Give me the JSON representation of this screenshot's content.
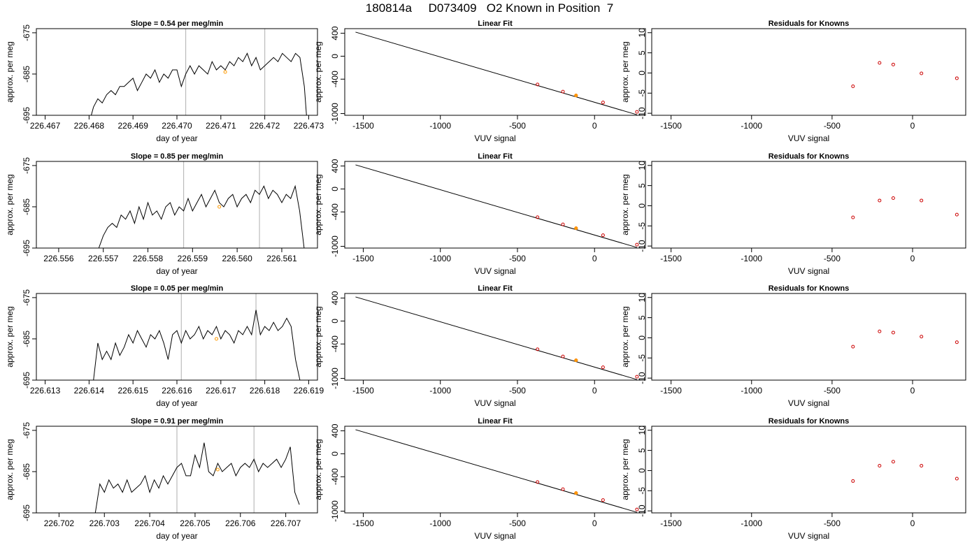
{
  "page_title": "180814a     D073409   O2 Known in Position  7",
  "colors": {
    "line": "#000000",
    "residual_points": "#cc0000",
    "highlight_point": "#ff9900",
    "marker_lines": "#bbbbbb",
    "fit_points": "#cc0000"
  },
  "chart_data": [
    {
      "type": "line",
      "panel": "row1-timeseries",
      "title": "Slope =  0.54  per meg/min",
      "xlabel": "day of year",
      "ylabel": "approx. per meg",
      "xticks": [
        226.467,
        226.468,
        226.469,
        226.47,
        226.471,
        226.472,
        226.473
      ],
      "xtick_labels": [
        "226.467",
        "226.468",
        "226.469",
        "226.470",
        "226.471",
        "226.472",
        "226.473"
      ],
      "yticks": [
        -675,
        -685,
        -695
      ],
      "ytick_labels": [
        "-675",
        "-685",
        "-695"
      ],
      "xlim": [
        226.4668,
        226.4732
      ],
      "ylim": [
        -695,
        -674
      ],
      "vlines": [
        226.4702,
        226.472
      ],
      "highlight": {
        "x": 226.4711,
        "y": -684.5
      },
      "series": [
        {
          "x": [
            226.46805,
            226.4681,
            226.4682,
            226.4683,
            226.4684,
            226.4685,
            226.4686,
            226.4687,
            226.4688,
            226.4689,
            226.469,
            226.4691,
            226.4692,
            226.4693,
            226.4694,
            226.4695,
            226.4696,
            226.4697,
            226.4698,
            226.4699,
            226.47,
            226.4701,
            226.4702,
            226.4703,
            226.4704,
            226.4705,
            226.4706,
            226.4707,
            226.4708,
            226.4709,
            226.471,
            226.4711,
            226.4712,
            226.4713,
            226.4714,
            226.4715,
            226.4716,
            226.4717,
            226.4718,
            226.4719,
            226.472,
            226.4721,
            226.4722,
            226.4723,
            226.4724,
            226.4725,
            226.4726,
            226.4727,
            226.4728,
            226.4729,
            226.47295
          ],
          "values": [
            -695,
            -693,
            -691,
            -692,
            -690,
            -689,
            -690,
            -688,
            -688,
            -687,
            -686,
            -689,
            -687,
            -685,
            -686,
            -684,
            -687,
            -685,
            -686,
            -684,
            -684,
            -688,
            -685,
            -683,
            -685,
            -683,
            -684,
            -685,
            -682,
            -684,
            -683,
            -684,
            -682,
            -683,
            -681,
            -682,
            -680,
            -683,
            -681,
            -684,
            -683,
            -682,
            -681,
            -682,
            -680,
            -681,
            -682,
            -680,
            -681,
            -688,
            -695
          ]
        }
      ]
    },
    {
      "type": "scatter",
      "panel": "row1-fit",
      "title": "Linear Fit",
      "xlabel": "VUV signal",
      "ylabel": "approx. per meg",
      "xticks": [
        -1500,
        -1000,
        -500,
        0
      ],
      "xtick_labels": [
        "-1500",
        "-1000",
        "-500",
        "0"
      ],
      "yticks": [
        400,
        0,
        -400,
        -1000
      ],
      "ytick_labels": [
        "400",
        "0",
        "-400",
        "-1000"
      ],
      "xlim": [
        -1620,
        330
      ],
      "ylim": [
        -1030,
        480
      ],
      "fit_line": {
        "x": [
          -1550,
          275
        ],
        "y": [
          420,
          -1020
        ]
      },
      "points": {
        "x": [
          -370,
          -205,
          -120,
          55,
          275
        ],
        "y": [
          -493,
          -618,
          -684,
          -807,
          -970
        ]
      },
      "highlight": {
        "x": -120,
        "y": -684
      }
    },
    {
      "type": "scatter",
      "panel": "row1-residuals",
      "title": "Residuals for Knowns",
      "xlabel": "VUV signal",
      "ylabel": "approx. per meg",
      "xticks": [
        -1500,
        -1000,
        -500,
        0
      ],
      "xtick_labels": [
        "-1500",
        "-1000",
        "-500",
        "0"
      ],
      "yticks": [
        10,
        5,
        0,
        -5,
        -10
      ],
      "ytick_labels": [
        "10",
        "5",
        "0",
        "-5",
        "-10"
      ],
      "xlim": [
        -1620,
        330
      ],
      "ylim": [
        -10.5,
        11
      ],
      "points": {
        "x": [
          -370,
          -205,
          -120,
          55,
          275
        ],
        "y": [
          -3.3,
          2.5,
          2.1,
          -0.1,
          -1.3
        ]
      }
    },
    {
      "type": "line",
      "panel": "row2-timeseries",
      "title": "Slope =  0.85  per meg/min",
      "xlabel": "day of year",
      "ylabel": "approx. per meg",
      "xticks": [
        226.556,
        226.557,
        226.558,
        226.559,
        226.56,
        226.561
      ],
      "xtick_labels": [
        "226.556",
        "226.557",
        "226.558",
        "226.559",
        "226.560",
        "226.561"
      ],
      "yticks": [
        -675,
        -685,
        -695
      ],
      "ytick_labels": [
        "-675",
        "-685",
        "-695"
      ],
      "xlim": [
        226.5555,
        226.5618
      ],
      "ylim": [
        -695,
        -674
      ],
      "vlines": [
        226.5588,
        226.5605
      ],
      "highlight": {
        "x": 226.5596,
        "y": -685
      },
      "series": [
        {
          "x": [
            226.5569,
            226.557,
            226.5571,
            226.5572,
            226.5573,
            226.5574,
            226.5575,
            226.5576,
            226.5577,
            226.5578,
            226.5579,
            226.558,
            226.5581,
            226.5582,
            226.5583,
            226.5584,
            226.5585,
            226.5586,
            226.5587,
            226.5588,
            226.5589,
            226.559,
            226.5591,
            226.5592,
            226.5593,
            226.5594,
            226.5595,
            226.5596,
            226.5597,
            226.5598,
            226.5599,
            226.56,
            226.5601,
            226.5602,
            226.5603,
            226.5604,
            226.5605,
            226.5606,
            226.5607,
            226.5608,
            226.5609,
            226.561,
            226.5611,
            226.5612,
            226.5613,
            226.5614,
            226.5615
          ],
          "values": [
            -695,
            -692,
            -690,
            -689,
            -690,
            -687,
            -688,
            -686,
            -689,
            -685,
            -688,
            -684,
            -687,
            -686,
            -688,
            -685,
            -684,
            -687,
            -685,
            -686,
            -683,
            -686,
            -684,
            -682,
            -685,
            -683,
            -681,
            -684,
            -685,
            -683,
            -682,
            -685,
            -683,
            -682,
            -684,
            -681,
            -682,
            -680,
            -683,
            -681,
            -682,
            -684,
            -682,
            -683,
            -680,
            -686,
            -695
          ]
        }
      ]
    },
    {
      "type": "scatter",
      "panel": "row2-fit",
      "title": "Linear Fit",
      "xlabel": "VUV signal",
      "ylabel": "approx. per meg",
      "xticks": [
        -1500,
        -1000,
        -500,
        0
      ],
      "xtick_labels": [
        "-1500",
        "-1000",
        "-500",
        "0"
      ],
      "yticks": [
        400,
        0,
        -400,
        -1000
      ],
      "ytick_labels": [
        "400",
        "0",
        "-400",
        "-1000"
      ],
      "xlim": [
        -1620,
        330
      ],
      "ylim": [
        -1030,
        480
      ],
      "fit_line": {
        "x": [
          -1550,
          275
        ],
        "y": [
          420,
          -1020
        ]
      },
      "points": {
        "x": [
          -370,
          -205,
          -120,
          55,
          275
        ],
        "y": [
          -493,
          -618,
          -684,
          -807,
          -970
        ]
      },
      "highlight": {
        "x": -120,
        "y": -684
      }
    },
    {
      "type": "scatter",
      "panel": "row2-residuals",
      "title": "Residuals for Knowns",
      "xlabel": "VUV signal",
      "ylabel": "approx. per meg",
      "xticks": [
        -1500,
        -1000,
        -500,
        0
      ],
      "xtick_labels": [
        "-1500",
        "-1000",
        "-500",
        "0"
      ],
      "yticks": [
        10,
        5,
        0,
        -5,
        -10
      ],
      "ytick_labels": [
        "10",
        "5",
        "0",
        "-5",
        "-10"
      ],
      "xlim": [
        -1620,
        330
      ],
      "ylim": [
        -10.5,
        11
      ],
      "points": {
        "x": [
          -370,
          -205,
          -120,
          55,
          275
        ],
        "y": [
          -2.9,
          1.3,
          1.9,
          1.3,
          -2.2
        ]
      }
    },
    {
      "type": "line",
      "panel": "row3-timeseries",
      "title": "Slope =  0.05  per meg/min",
      "xlabel": "day of year",
      "ylabel": "approx. per meg",
      "xticks": [
        226.613,
        226.614,
        226.615,
        226.616,
        226.617,
        226.618,
        226.619
      ],
      "xtick_labels": [
        "226.613",
        "226.614",
        "226.615",
        "226.616",
        "226.617",
        "226.618",
        "226.619"
      ],
      "yticks": [
        -675,
        -685,
        -695
      ],
      "ytick_labels": [
        "-675",
        "-685",
        "-695"
      ],
      "xlim": [
        226.6128,
        226.6192
      ],
      "ylim": [
        -695,
        -674
      ],
      "vlines": [
        226.6161,
        226.6178
      ],
      "highlight": {
        "x": 226.6169,
        "y": -685
      },
      "series": [
        {
          "x": [
            226.6141,
            226.6142,
            226.6143,
            226.6144,
            226.6145,
            226.6146,
            226.6147,
            226.6148,
            226.6149,
            226.615,
            226.6151,
            226.6152,
            226.6153,
            226.6154,
            226.6155,
            226.6156,
            226.6157,
            226.6158,
            226.6159,
            226.616,
            226.6161,
            226.6162,
            226.6163,
            226.6164,
            226.6165,
            226.6166,
            226.6167,
            226.6168,
            226.6169,
            226.617,
            226.6171,
            226.6172,
            226.6173,
            226.6174,
            226.6175,
            226.6176,
            226.6177,
            226.6178,
            226.6179,
            226.618,
            226.6181,
            226.6182,
            226.6183,
            226.6184,
            226.6185,
            226.6186,
            226.6187,
            226.6188
          ],
          "values": [
            -695,
            -686,
            -690,
            -688,
            -690,
            -686,
            -689,
            -687,
            -684,
            -686,
            -683,
            -685,
            -687,
            -684,
            -685,
            -683,
            -686,
            -690,
            -684,
            -683,
            -686,
            -683,
            -685,
            -684,
            -682,
            -685,
            -683,
            -684,
            -682,
            -685,
            -683,
            -684,
            -686,
            -683,
            -684,
            -682,
            -684,
            -678,
            -684,
            -682,
            -683,
            -681,
            -683,
            -682,
            -680,
            -682,
            -690,
            -695
          ]
        }
      ]
    },
    {
      "type": "scatter",
      "panel": "row3-fit",
      "title": "Linear Fit",
      "xlabel": "VUV signal",
      "ylabel": "approx. per meg",
      "xticks": [
        -1500,
        -1000,
        -500,
        0
      ],
      "xtick_labels": [
        "-1500",
        "-1000",
        "-500",
        "0"
      ],
      "yticks": [
        400,
        0,
        -400,
        -1000
      ],
      "ytick_labels": [
        "400",
        "0",
        "-400",
        "-1000"
      ],
      "xlim": [
        -1620,
        330
      ],
      "ylim": [
        -1030,
        480
      ],
      "fit_line": {
        "x": [
          -1550,
          275
        ],
        "y": [
          420,
          -1020
        ]
      },
      "points": {
        "x": [
          -370,
          -205,
          -120,
          55,
          275
        ],
        "y": [
          -493,
          -618,
          -684,
          -807,
          -970
        ]
      },
      "highlight": {
        "x": -120,
        "y": -684
      }
    },
    {
      "type": "scatter",
      "panel": "row3-residuals",
      "title": "Residuals for Knowns",
      "xlabel": "VUV signal",
      "ylabel": "approx. per meg",
      "xticks": [
        -1500,
        -1000,
        -500,
        0
      ],
      "xtick_labels": [
        "-1500",
        "-1000",
        "-500",
        "0"
      ],
      "yticks": [
        10,
        5,
        0,
        -5,
        -10
      ],
      "ytick_labels": [
        "10",
        "5",
        "0",
        "-5",
        "-10"
      ],
      "xlim": [
        -1620,
        330
      ],
      "ylim": [
        -10.5,
        11
      ],
      "points": {
        "x": [
          -370,
          -205,
          -120,
          55,
          275
        ],
        "y": [
          -2.2,
          1.6,
          1.3,
          0.3,
          -1.1
        ]
      }
    },
    {
      "type": "line",
      "panel": "row4-timeseries",
      "title": "Slope =  0.91  per meg/min",
      "xlabel": "day of year",
      "ylabel": "approx. per meg",
      "xticks": [
        226.702,
        226.703,
        226.704,
        226.705,
        226.706,
        226.707
      ],
      "xtick_labels": [
        "226.702",
        "226.703",
        "226.704",
        "226.705",
        "226.706",
        "226.707"
      ],
      "yticks": [
        -675,
        -685,
        -695
      ],
      "ytick_labels": [
        "-675",
        "-685",
        "-695"
      ],
      "xlim": [
        226.7015,
        226.7077
      ],
      "ylim": [
        -695,
        -674
      ],
      "vlines": [
        226.7046,
        226.7063
      ],
      "highlight": {
        "x": 226.7055,
        "y": -684.5
      },
      "series": [
        {
          "x": [
            226.7028,
            226.7029,
            226.703,
            226.7031,
            226.7032,
            226.7033,
            226.7034,
            226.7035,
            226.7036,
            226.7037,
            226.7038,
            226.7039,
            226.704,
            226.7041,
            226.7042,
            226.7043,
            226.7044,
            226.7045,
            226.7046,
            226.7047,
            226.7048,
            226.7049,
            226.705,
            226.7051,
            226.7052,
            226.7053,
            226.7054,
            226.7055,
            226.7056,
            226.7057,
            226.7058,
            226.7059,
            226.706,
            226.7061,
            226.7062,
            226.7063,
            226.7064,
            226.7065,
            226.7066,
            226.7067,
            226.7068,
            226.7069,
            226.707,
            226.7071,
            226.7072,
            226.7073
          ],
          "values": [
            -695,
            -688,
            -690,
            -687,
            -689,
            -688,
            -690,
            -687,
            -690,
            -689,
            -688,
            -686,
            -690,
            -687,
            -689,
            -686,
            -688,
            -686,
            -684,
            -683,
            -686,
            -686,
            -681,
            -684,
            -678,
            -685,
            -686,
            -683,
            -685,
            -684,
            -683,
            -686,
            -684,
            -683,
            -684,
            -682,
            -685,
            -683,
            -684,
            -683,
            -682,
            -684,
            -682,
            -679,
            -690,
            -693
          ]
        }
      ]
    },
    {
      "type": "scatter",
      "panel": "row4-fit",
      "title": "Linear Fit",
      "xlabel": "VUV signal",
      "ylabel": "approx. per meg",
      "xticks": [
        -1500,
        -1000,
        -500,
        0
      ],
      "xtick_labels": [
        "-1500",
        "-1000",
        "-500",
        "0"
      ],
      "yticks": [
        400,
        0,
        -400,
        -1000
      ],
      "ytick_labels": [
        "400",
        "0",
        "-400",
        "-1000"
      ],
      "xlim": [
        -1620,
        330
      ],
      "ylim": [
        -1030,
        480
      ],
      "fit_line": {
        "x": [
          -1550,
          275
        ],
        "y": [
          420,
          -1020
        ]
      },
      "points": {
        "x": [
          -370,
          -205,
          -120,
          55,
          275
        ],
        "y": [
          -493,
          -618,
          -684,
          -807,
          -970
        ]
      },
      "highlight": {
        "x": -120,
        "y": -684
      }
    },
    {
      "type": "scatter",
      "panel": "row4-residuals",
      "title": "Residuals for Knowns",
      "xlabel": "VUV signal",
      "ylabel": "approx. per meg",
      "xticks": [
        -1500,
        -1000,
        -500,
        0
      ],
      "xtick_labels": [
        "-1500",
        "-1000",
        "-500",
        "0"
      ],
      "yticks": [
        10,
        5,
        0,
        -5,
        -10
      ],
      "ytick_labels": [
        "10",
        "5",
        "0",
        "-5",
        "-10"
      ],
      "xlim": [
        -1620,
        330
      ],
      "ylim": [
        -10.5,
        11
      ],
      "points": {
        "x": [
          -370,
          -205,
          -120,
          55,
          275
        ],
        "y": [
          -2.6,
          1.2,
          2.2,
          1.2,
          -2.0
        ]
      }
    }
  ]
}
